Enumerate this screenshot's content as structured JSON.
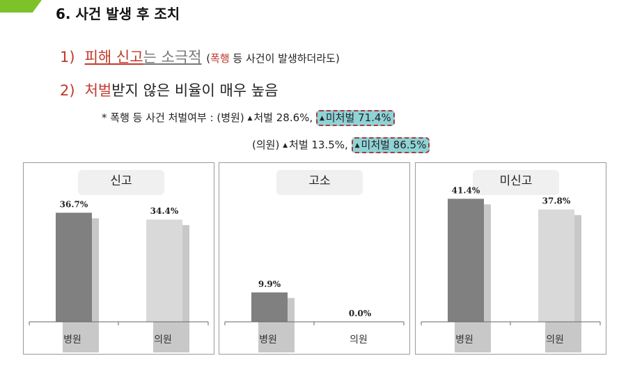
{
  "section": {
    "title": "6. 사건 발생 후 조치"
  },
  "points": [
    {
      "num": "1)",
      "red_underlined": "피해 신고",
      "gray_underlined": "는 소극적",
      "paren_open": "(",
      "paren_red": "폭행",
      "paren_rest": " 등 사건이 발생하더라도)"
    },
    {
      "num": "2)",
      "red": "처벌",
      "rest": "받지 않은 비율이 매우 높음"
    }
  ],
  "details": {
    "row1_prefix": "* 폭행 등 사건 처벌여부 : (병원)",
    "row1_punished": "처벌 28.6%,",
    "row1_unpunished": "미처벌 71.4%",
    "row2_prefix": "(의원)",
    "row2_punished": "처벌 13.5%,",
    "row2_unpunished": "미처벌 86.5%",
    "marker": "▲"
  },
  "colors": {
    "accent": "#7dc12b",
    "red": "#c0392b",
    "bar_hospital": "#808080",
    "bar_clinic": "#d9d9d9",
    "highlight": "#8fd3d6"
  },
  "chart_data": [
    {
      "type": "bar",
      "title": "신고",
      "categories": [
        "병원",
        "의원"
      ],
      "values": [
        36.7,
        34.4
      ],
      "labels": [
        "36.7%",
        "34.4%"
      ],
      "ylim": [
        0,
        45
      ]
    },
    {
      "type": "bar",
      "title": "고소",
      "categories": [
        "병원",
        "의원"
      ],
      "values": [
        9.9,
        0.0
      ],
      "labels": [
        "9.9%",
        "0.0%"
      ],
      "ylim": [
        0,
        45
      ]
    },
    {
      "type": "bar",
      "title": "미신고",
      "categories": [
        "병원",
        "의원"
      ],
      "values": [
        41.4,
        37.8
      ],
      "labels": [
        "41.4%",
        "37.8%"
      ],
      "ylim": [
        0,
        45
      ]
    }
  ]
}
